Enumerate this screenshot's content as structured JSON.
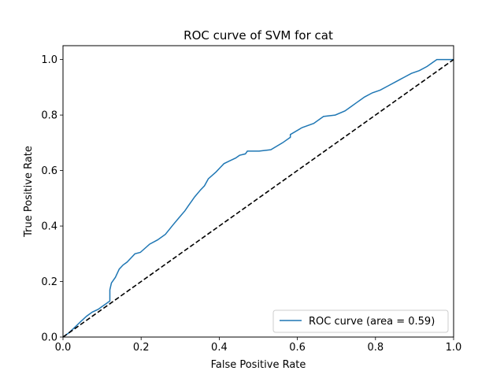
{
  "chart_data": {
    "type": "line",
    "title": "ROC curve of SVM for cat",
    "xlabel": "False Positive Rate",
    "ylabel": "True Positive Rate",
    "xlim": [
      0,
      1
    ],
    "ylim": [
      0,
      1.05
    ],
    "x_ticks": [
      "0.0",
      "0.2",
      "0.4",
      "0.6",
      "0.8",
      "1.0"
    ],
    "y_ticks": [
      "0.0",
      "0.2",
      "0.4",
      "0.6",
      "0.8",
      "1.0"
    ],
    "legend_position": "lower right",
    "grid": false,
    "series": [
      {
        "name": "ROC curve (area = 0.59)",
        "color": "#1f77b4",
        "style": "solid",
        "x": [
          0.0,
          0.015,
          0.03,
          0.045,
          0.06,
          0.075,
          0.09,
          0.105,
          0.12,
          0.12,
          0.124,
          0.134,
          0.144,
          0.154,
          0.164,
          0.174,
          0.184,
          0.198,
          0.222,
          0.242,
          0.262,
          0.282,
          0.297,
          0.312,
          0.322,
          0.337,
          0.352,
          0.362,
          0.372,
          0.392,
          0.402,
          0.412,
          0.427,
          0.442,
          0.452,
          0.467,
          0.472,
          0.502,
          0.532,
          0.562,
          0.582,
          0.582,
          0.612,
          0.642,
          0.667,
          0.697,
          0.722,
          0.737,
          0.752,
          0.772,
          0.792,
          0.812,
          0.832,
          0.852,
          0.872,
          0.892,
          0.912,
          0.932,
          0.947,
          0.957,
          0.967,
          1.0
        ],
        "y": [
          0.0,
          0.015,
          0.035,
          0.055,
          0.075,
          0.09,
          0.1,
          0.115,
          0.13,
          0.17,
          0.195,
          0.215,
          0.245,
          0.26,
          0.27,
          0.285,
          0.3,
          0.305,
          0.335,
          0.35,
          0.37,
          0.405,
          0.43,
          0.455,
          0.475,
          0.505,
          0.53,
          0.545,
          0.57,
          0.595,
          0.61,
          0.625,
          0.635,
          0.645,
          0.655,
          0.66,
          0.67,
          0.67,
          0.675,
          0.7,
          0.72,
          0.73,
          0.755,
          0.77,
          0.795,
          0.8,
          0.815,
          0.83,
          0.845,
          0.865,
          0.88,
          0.89,
          0.905,
          0.92,
          0.935,
          0.95,
          0.96,
          0.975,
          0.99,
          1.0,
          1.0,
          1.0
        ]
      },
      {
        "name": "",
        "color": "#000000",
        "style": "dashed",
        "x": [
          0,
          1
        ],
        "y": [
          0,
          1
        ]
      }
    ]
  }
}
